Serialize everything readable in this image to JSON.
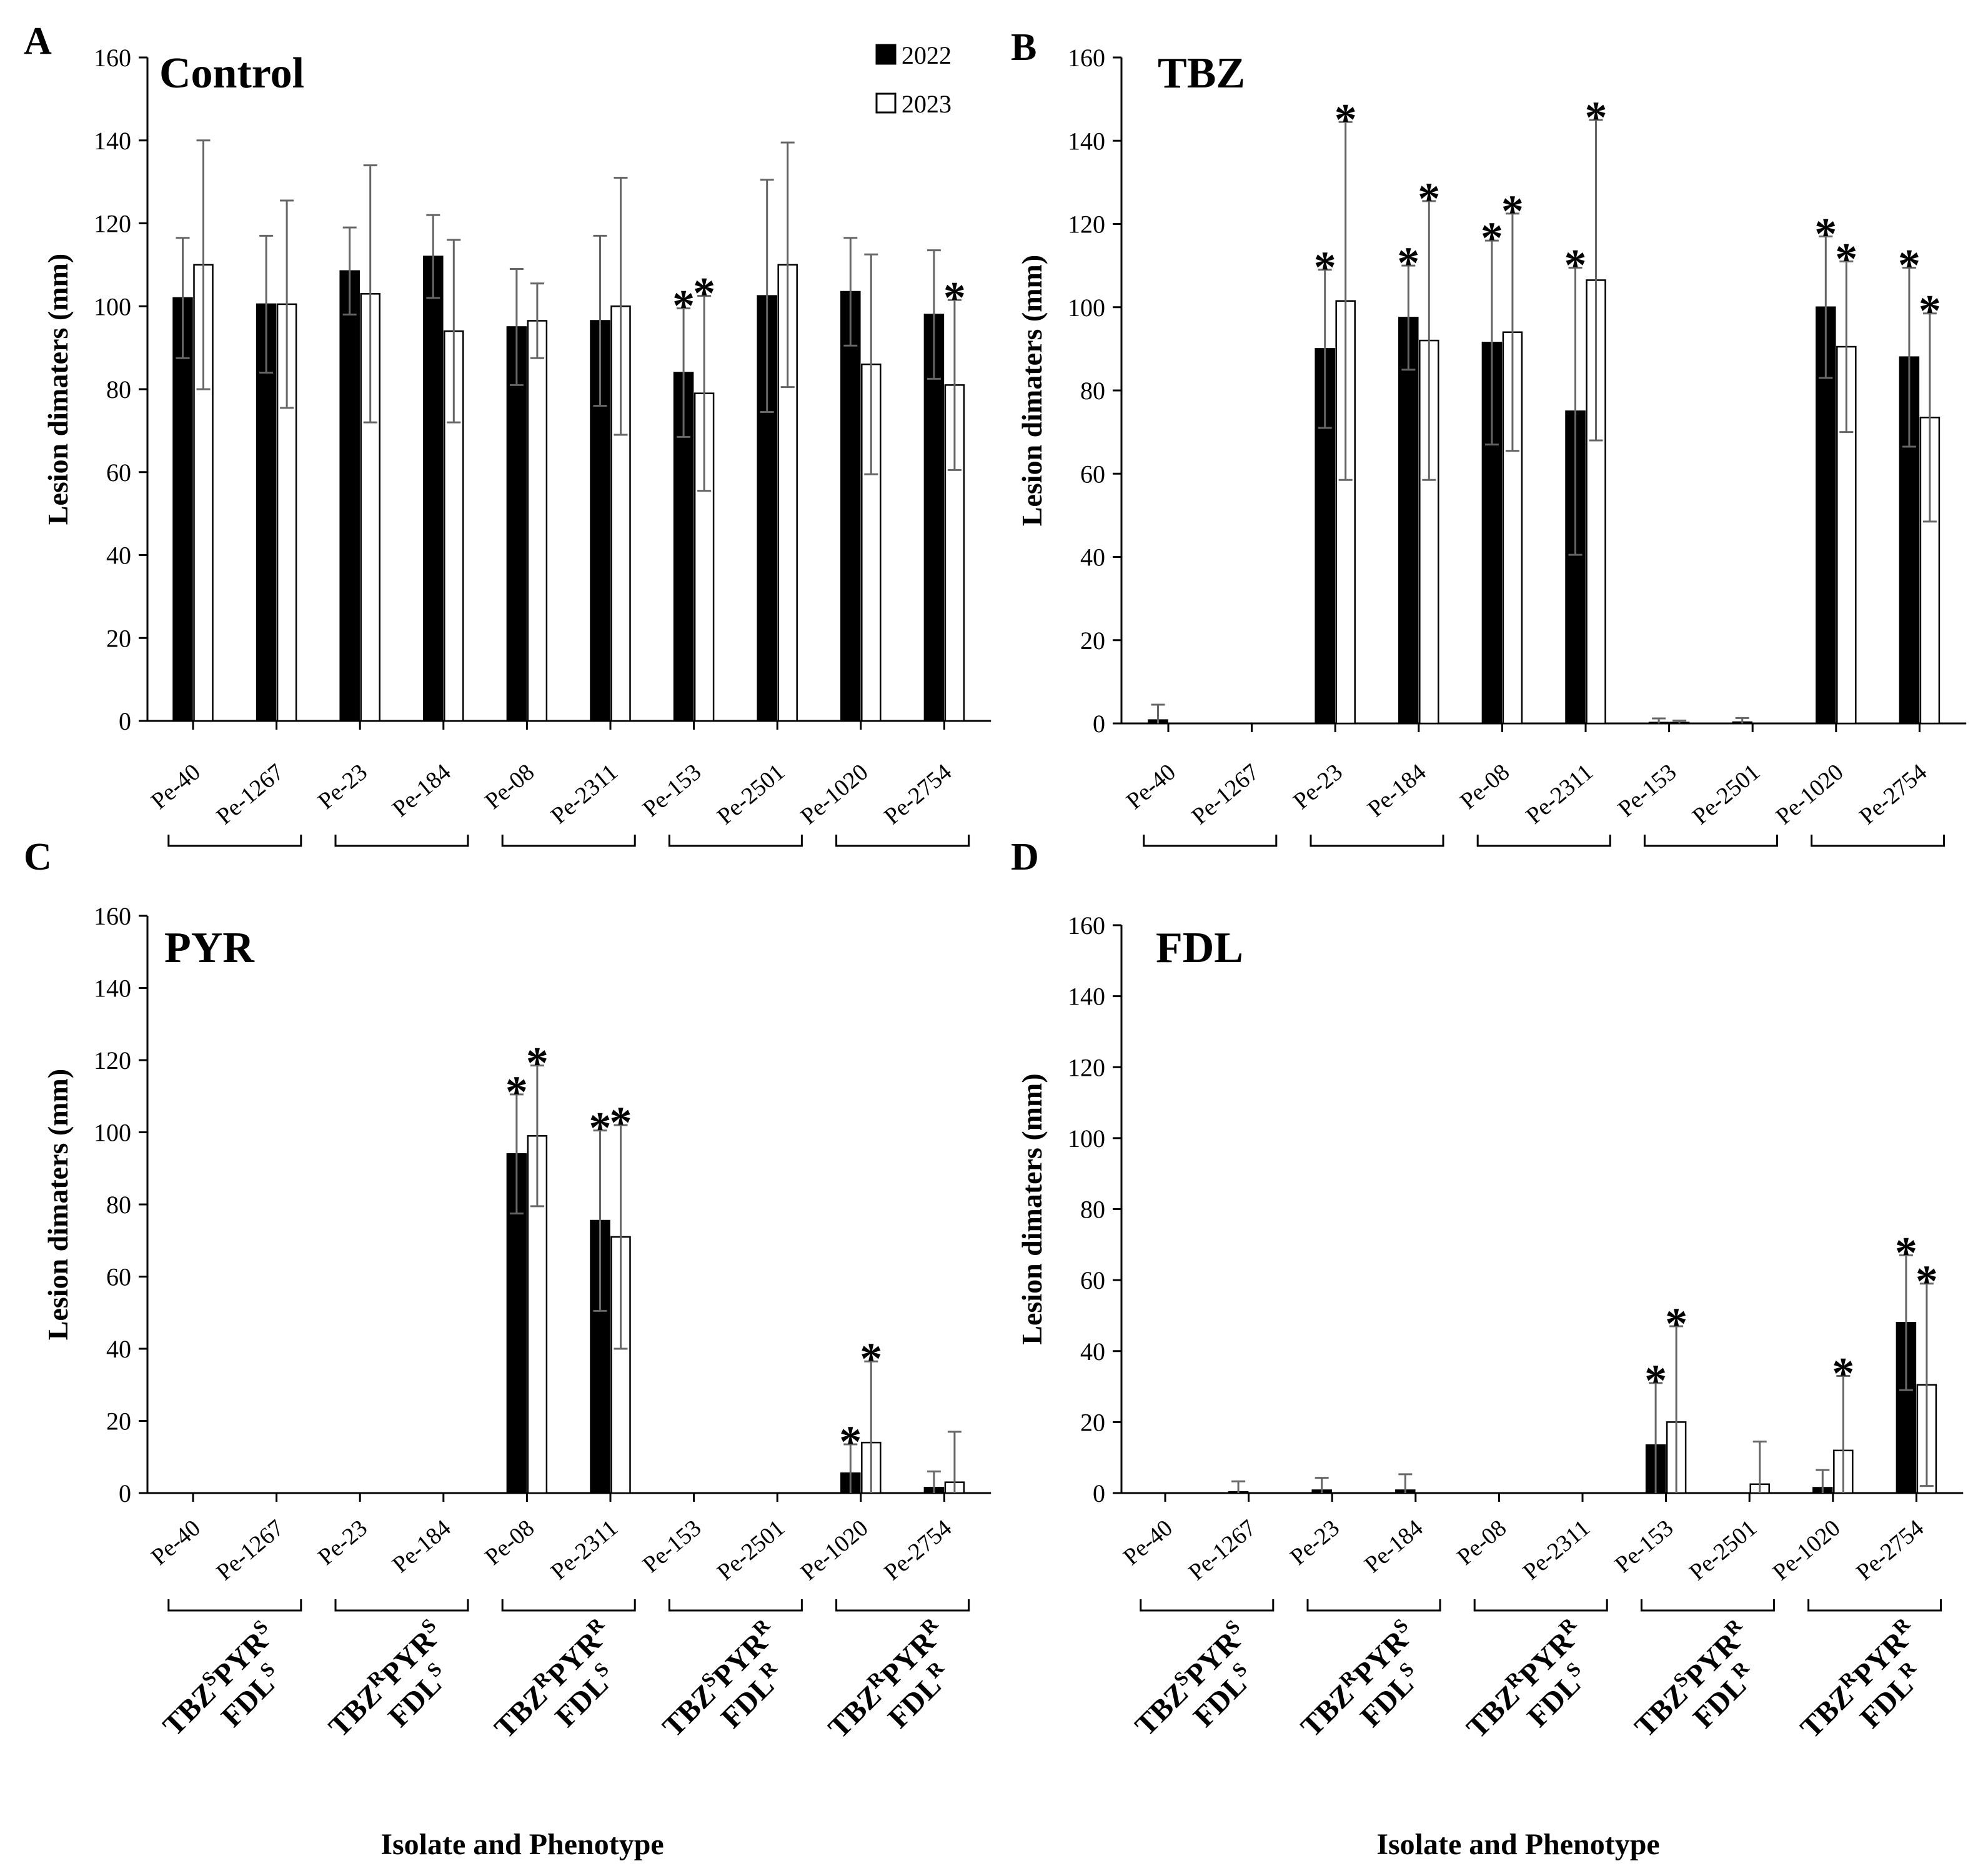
{
  "figure": {
    "ylabel": "Lesion dimaters (mm)",
    "xlabel": "Isolate and Phenotype",
    "xlabel_D": "Isolate and  Phenotype"
  },
  "legend": [
    {
      "label": "2022",
      "fill": "#000000"
    },
    {
      "label": "2023",
      "fill": "#ffffff"
    }
  ],
  "groups": [
    {
      "lines": [
        [
          [
            "TBZ",
            ""
          ],
          [
            "S",
            "sup"
          ],
          [
            "PYR",
            ""
          ],
          [
            "S",
            "sup"
          ]
        ],
        [
          [
            "FDL",
            ""
          ],
          [
            "S",
            "sup"
          ]
        ]
      ]
    },
    {
      "lines": [
        [
          [
            "TBZ",
            ""
          ],
          [
            "R",
            "sup"
          ],
          [
            "PYR",
            ""
          ],
          [
            "S",
            "sup"
          ]
        ],
        [
          [
            "FDL",
            ""
          ],
          [
            "S",
            "sup"
          ]
        ]
      ]
    },
    {
      "lines": [
        [
          [
            "TBZ",
            ""
          ],
          [
            "R",
            "sup"
          ],
          [
            "PYR",
            ""
          ],
          [
            "R",
            "sup"
          ]
        ],
        [
          [
            "FDL",
            ""
          ],
          [
            "S",
            "sup"
          ]
        ]
      ]
    },
    {
      "lines": [
        [
          [
            "TBZ",
            ""
          ],
          [
            "S",
            "sup"
          ],
          [
            "PYR",
            ""
          ],
          [
            "R",
            "sup"
          ]
        ],
        [
          [
            "FDL",
            ""
          ],
          [
            "R",
            "sup"
          ]
        ]
      ]
    },
    {
      "lines": [
        [
          [
            "TBZ",
            ""
          ],
          [
            "R",
            "sup"
          ],
          [
            "PYR",
            ""
          ],
          [
            "R",
            "sup"
          ]
        ],
        [
          [
            "FDL",
            ""
          ],
          [
            "R",
            "sup"
          ]
        ]
      ]
    }
  ],
  "chart_data": [
    {
      "panel": "A",
      "title": "Control",
      "type": "bar",
      "categories": [
        "Pe-40",
        "Pe-1267",
        "Pe-23",
        "Pe-184",
        "Pe-08",
        "Pe-2311",
        "Pe-153",
        "Pe-2501",
        "Pe-1020",
        "Pe-2754"
      ],
      "ylim": [
        0,
        160
      ],
      "yticks": [
        0,
        20,
        40,
        60,
        80,
        100,
        120,
        140,
        160
      ],
      "series": [
        {
          "name": "2022",
          "values": [
            102,
            100.5,
            108.5,
            112,
            95,
            96.5,
            84,
            102.5,
            103.5,
            98
          ],
          "errors": [
            14.5,
            16.5,
            10.5,
            10,
            14,
            20.5,
            15.5,
            28,
            13,
            15.5
          ],
          "stars": [
            false,
            false,
            false,
            false,
            false,
            false,
            true,
            false,
            false,
            false
          ]
        },
        {
          "name": "2023",
          "values": [
            110,
            100.5,
            103,
            94,
            96.5,
            100,
            79,
            110,
            86,
            81
          ],
          "errors": [
            30,
            25,
            31,
            22,
            9,
            31,
            23.5,
            29.5,
            26.5,
            20.5
          ],
          "stars": [
            false,
            false,
            false,
            false,
            false,
            false,
            true,
            false,
            false,
            true
          ]
        }
      ]
    },
    {
      "panel": "B",
      "title": "TBZ",
      "type": "bar",
      "categories": [
        "Pe-40",
        "Pe-1267",
        "Pe-23",
        "Pe-184",
        "Pe-08",
        "Pe-2311",
        "Pe-153",
        "Pe-2501",
        "Pe-1020",
        "Pe-2754"
      ],
      "ylim": [
        0,
        160
      ],
      "yticks": [
        0,
        20,
        40,
        60,
        80,
        100,
        120,
        140,
        160
      ],
      "series": [
        {
          "name": "2022",
          "values": [
            0.8,
            0,
            90,
            97.5,
            91.5,
            75,
            0.2,
            0.3,
            100,
            88
          ],
          "errors": [
            3.7,
            0,
            19,
            12.5,
            24.5,
            34.5,
            1,
            1,
            17,
            21.5
          ],
          "stars": [
            false,
            false,
            true,
            true,
            true,
            true,
            false,
            false,
            true,
            true
          ]
        },
        {
          "name": "2023",
          "values": [
            0,
            0,
            101.5,
            92,
            94,
            106.5,
            0.2,
            0,
            90.5,
            73.5
          ],
          "errors": [
            0,
            0,
            43,
            33.5,
            28.5,
            38.5,
            0.5,
            0,
            20.5,
            25
          ],
          "stars": [
            false,
            false,
            true,
            true,
            true,
            true,
            false,
            false,
            true,
            true
          ]
        }
      ]
    },
    {
      "panel": "C",
      "title": "PYR",
      "type": "bar",
      "categories": [
        "Pe-40",
        "Pe-1267",
        "Pe-23",
        "Pe-184",
        "Pe-08",
        "Pe-2311",
        "Pe-153",
        "Pe-2501",
        "Pe-1020",
        "Pe-2754"
      ],
      "ylim": [
        0,
        160
      ],
      "yticks": [
        0,
        20,
        40,
        60,
        80,
        100,
        120,
        140,
        160
      ],
      "series": [
        {
          "name": "2022",
          "values": [
            0,
            0,
            0,
            0,
            94,
            75.5,
            0,
            0,
            5.5,
            1.5
          ],
          "errors": [
            0,
            0,
            0,
            0,
            16.5,
            25,
            0,
            0,
            8,
            4.5
          ],
          "stars": [
            false,
            false,
            false,
            false,
            true,
            true,
            false,
            false,
            true,
            false
          ]
        },
        {
          "name": "2023",
          "values": [
            0,
            0,
            0,
            0,
            99,
            71,
            0,
            0,
            14,
            3
          ],
          "errors": [
            0,
            0,
            0,
            0,
            19.5,
            31,
            0,
            0,
            22.5,
            14
          ],
          "stars": [
            false,
            false,
            false,
            false,
            true,
            true,
            false,
            false,
            true,
            false
          ]
        }
      ]
    },
    {
      "panel": "D",
      "title": "FDL",
      "type": "bar",
      "categories": [
        "Pe-40",
        "Pe-1267",
        "Pe-23",
        "Pe-184",
        "Pe-08",
        "Pe-2311",
        "Pe-153",
        "Pe-2501",
        "Pe-1020",
        "Pe-2754"
      ],
      "ylim": [
        0,
        160
      ],
      "yticks": [
        0,
        20,
        40,
        60,
        80,
        100,
        120,
        140,
        160
      ],
      "series": [
        {
          "name": "2022",
          "values": [
            0,
            0.3,
            0.8,
            0.8,
            0,
            0,
            13.5,
            0,
            1.5,
            48
          ],
          "errors": [
            0,
            3,
            3.5,
            4.5,
            0,
            0,
            17.5,
            0,
            5,
            19
          ],
          "stars": [
            false,
            false,
            false,
            false,
            false,
            false,
            true,
            false,
            false,
            true
          ]
        },
        {
          "name": "2023",
          "values": [
            0,
            0,
            0,
            0,
            0,
            0,
            20,
            2.5,
            12,
            30.5
          ],
          "errors": [
            0,
            0,
            0,
            0,
            0,
            0,
            27,
            12,
            21,
            28.5
          ],
          "stars": [
            false,
            false,
            false,
            false,
            false,
            false,
            true,
            false,
            true,
            true
          ]
        }
      ]
    }
  ]
}
